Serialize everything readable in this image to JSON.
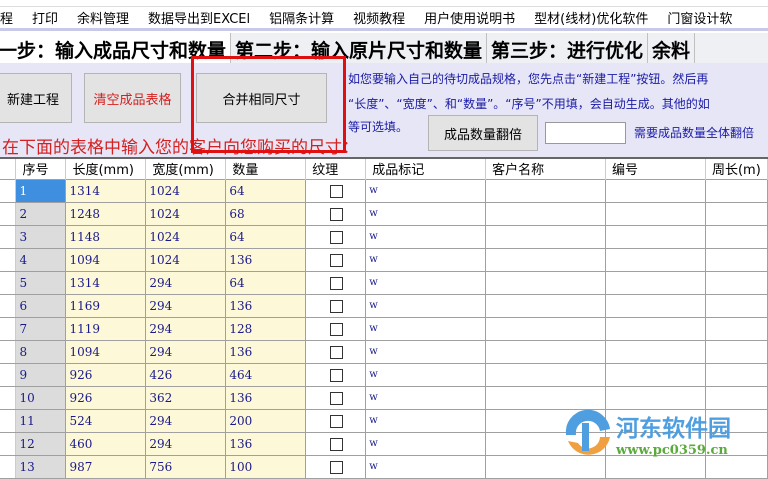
{
  "menu": [
    "程",
    "打印",
    "余料管理",
    "数据导出到EXCEl",
    "铝隔条计算",
    "视频教程",
    "用户使用说明书",
    "型材(线材)优化软件",
    "门窗设计软"
  ],
  "tabs": [
    "一步：输入成品尺寸和数量",
    "第二步：输入原片尺寸和数量",
    "第三步：进行优化",
    "余料"
  ],
  "buttons": {
    "new_project": "新建工程",
    "clear_table": "清空成品表格",
    "merge_same": "合并相同尺寸",
    "double_qty": "成品数量翻倍"
  },
  "info": {
    "line1": "如您要输入自己的待切成品规格，您先点击“新建工程”按钮。然后再",
    "line2": "“长度”、“宽度”、和“数量”。“序号”不用填，会自动生成。其他的如",
    "line3": "等可选填。",
    "double_hint": "需要成品数量全体翻倍"
  },
  "double_input": {
    "value": ""
  },
  "instruction": "在下面的表格中输入您的客户向您购买的尺寸：",
  "table": {
    "headers": [
      "序号",
      "长度(mm)",
      "宽度(mm)",
      "数量",
      "纹理",
      "成品标记",
      "客户名称",
      "编号",
      "周长(m)"
    ],
    "rows": [
      [
        "1",
        "1314",
        "1024",
        "64",
        false,
        "w"
      ],
      [
        "2",
        "1248",
        "1024",
        "68",
        false,
        "w"
      ],
      [
        "3",
        "1148",
        "1024",
        "64",
        false,
        "w"
      ],
      [
        "4",
        "1094",
        "1024",
        "136",
        false,
        "w"
      ],
      [
        "5",
        "1314",
        "294",
        "64",
        false,
        "w"
      ],
      [
        "6",
        "1169",
        "294",
        "136",
        false,
        "w"
      ],
      [
        "7",
        "1119",
        "294",
        "128",
        false,
        "w"
      ],
      [
        "8",
        "1094",
        "294",
        "136",
        false,
        "w"
      ],
      [
        "9",
        "926",
        "426",
        "464",
        false,
        "w"
      ],
      [
        "10",
        "926",
        "362",
        "136",
        false,
        "w"
      ],
      [
        "11",
        "524",
        "294",
        "200",
        false,
        "w"
      ],
      [
        "12",
        "460",
        "294",
        "136",
        false,
        "w"
      ],
      [
        "13",
        "987",
        "756",
        "100",
        false,
        "w"
      ]
    ]
  },
  "watermark": {
    "name": "河东软件园",
    "url": "www.pc0359.cn"
  },
  "colors": {
    "highlight_box": "#e01010",
    "selected_cell": "#3f8fe0",
    "input_cell": "#fdf8d8",
    "panel": "#e6e6f6"
  }
}
